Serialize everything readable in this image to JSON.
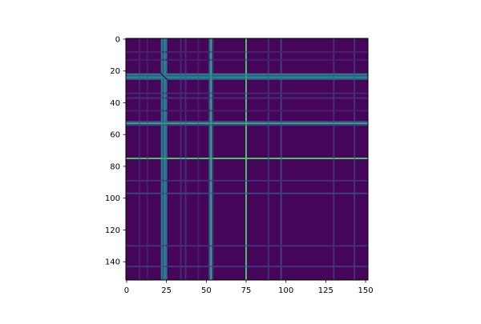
{
  "chart_data": {
    "type": "heatmap",
    "title": "",
    "xlabel": "",
    "ylabel": "",
    "n": 152,
    "xlim": [
      0,
      152
    ],
    "ylim": [
      152,
      0
    ],
    "y_inverted": true,
    "colormap": "viridis",
    "x_ticks": [
      0,
      25,
      50,
      75,
      100,
      125,
      150
    ],
    "y_ticks": [
      0,
      20,
      40,
      60,
      80,
      100,
      120,
      140
    ],
    "x_tick_labels": [
      "0",
      "25",
      "50",
      "75",
      "100",
      "125",
      "150"
    ],
    "y_tick_labels": [
      "0",
      "20",
      "40",
      "60",
      "80",
      "100",
      "120",
      "140"
    ],
    "background_value": 0.02,
    "lines": [
      {
        "index": 8,
        "value": 0.12
      },
      {
        "index": 13,
        "value": 0.1
      },
      {
        "index": 22,
        "value": 0.45
      },
      {
        "index": 23,
        "value": 0.3
      },
      {
        "index": 24,
        "value": 0.5
      },
      {
        "index": 25,
        "value": 0.35
      },
      {
        "index": 34,
        "value": 0.14
      },
      {
        "index": 37,
        "value": 0.15
      },
      {
        "index": 45,
        "value": 0.1
      },
      {
        "index": 52,
        "value": 0.25
      },
      {
        "index": 53,
        "value": 0.65
      },
      {
        "index": 54,
        "value": 0.2
      },
      {
        "index": 75,
        "value": 0.72
      },
      {
        "index": 89,
        "value": 0.15
      },
      {
        "index": 97,
        "value": 0.2
      },
      {
        "index": 130,
        "value": 0.15
      },
      {
        "index": 143,
        "value": 0.17
      }
    ],
    "grid": false
  },
  "colors": {
    "axis": "#000000",
    "background": "#ffffff"
  }
}
